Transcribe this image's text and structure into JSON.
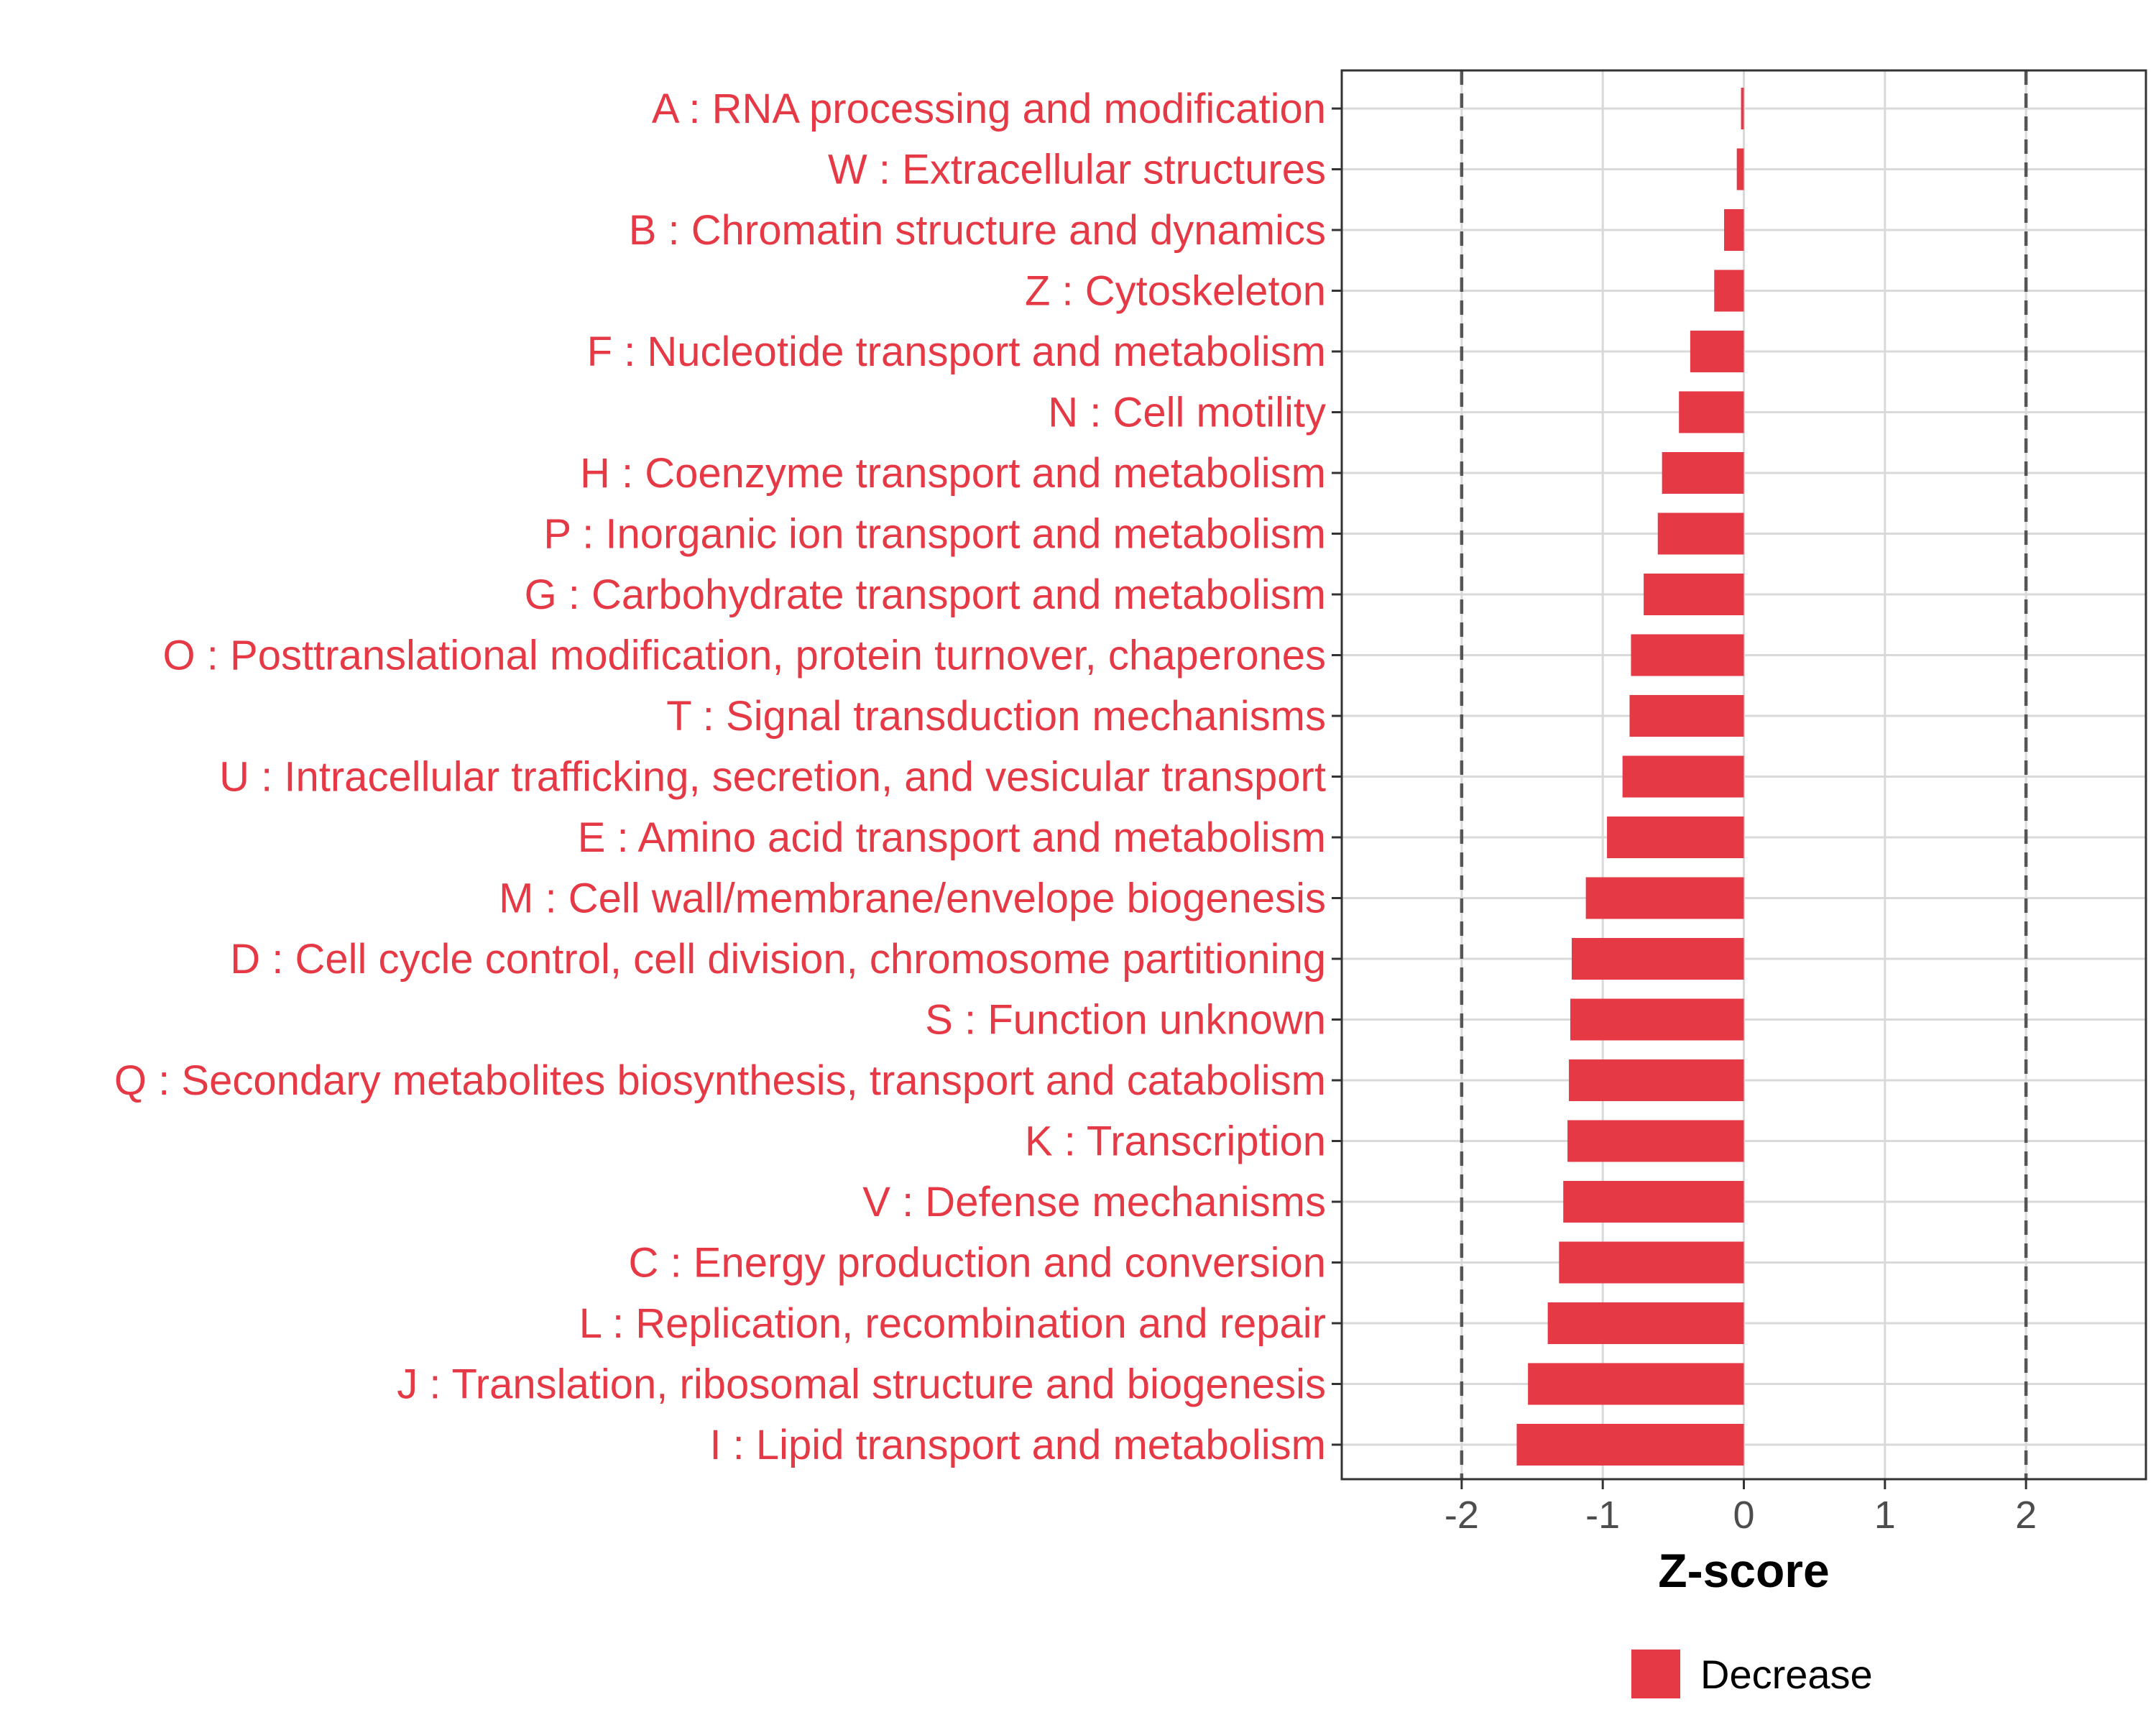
{
  "chart_data": {
    "type": "bar",
    "orientation": "horizontal",
    "xlabel": "Z-score",
    "xlim": [
      -2.85,
      2.85
    ],
    "xticks": [
      -2,
      -1,
      0,
      1,
      2
    ],
    "xtick_labels": [
      "-2",
      "-1",
      "0",
      "1",
      "2"
    ],
    "reference_lines": [
      -2,
      2
    ],
    "grid": true,
    "categories": [
      "A : RNA processing and modification",
      "W : Extracellular structures",
      "B : Chromatin structure and dynamics",
      "Z : Cytoskeleton",
      "F : Nucleotide transport and metabolism",
      "N : Cell motility",
      "H : Coenzyme transport and metabolism",
      "P : Inorganic ion transport and metabolism",
      "G : Carbohydrate transport and metabolism",
      "O : Posttranslational modification, protein turnover, chaperones",
      "T : Signal transduction mechanisms",
      "U : Intracellular trafficking, secretion, and vesicular transport",
      "E : Amino acid transport and metabolism",
      "M : Cell wall/membrane/envelope biogenesis",
      "D : Cell cycle control, cell division, chromosome partitioning",
      "S : Function unknown",
      "Q : Secondary metabolites biosynthesis, transport and catabolism",
      "K : Transcription",
      "V : Defense mechanisms",
      "C : Energy production and conversion",
      "L : Replication, recombination and repair",
      "J : Translation, ribosomal structure and biogenesis",
      "I : Lipid transport and metabolism"
    ],
    "series": [
      {
        "name": "Decrease",
        "color": "#e63946",
        "values": [
          -0.02,
          -0.05,
          -0.14,
          -0.21,
          -0.38,
          -0.46,
          -0.58,
          -0.61,
          -0.71,
          -0.8,
          -0.81,
          -0.86,
          -0.97,
          -1.12,
          -1.22,
          -1.23,
          -1.24,
          -1.25,
          -1.28,
          -1.31,
          -1.39,
          -1.53,
          -1.61
        ]
      }
    ],
    "legend": {
      "position": "bottom",
      "entries": [
        "Decrease"
      ]
    }
  },
  "colors": {
    "label_text": "#e63946",
    "bar": "#e63946",
    "grid": "#d9d9d9",
    "axis": "#333333",
    "reference_line": "#555555"
  }
}
